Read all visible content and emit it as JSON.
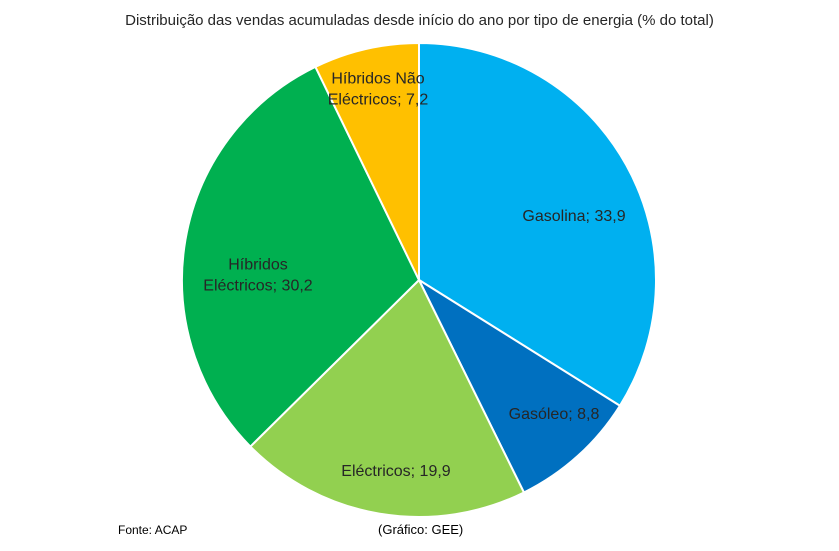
{
  "chart_data": {
    "type": "pie",
    "title": "Distribuição das vendas acumuladas desde início do ano por tipo de energia (% do total)",
    "start_angle_deg": 0,
    "direction": "clockwise",
    "legend": "none",
    "slices": [
      {
        "label_lines": [
          "Gasolina; 33,9"
        ],
        "name": "Gasolina",
        "value": 33.9,
        "color": "#00B0F0"
      },
      {
        "label_lines": [
          "Gasóleo; 8,8"
        ],
        "name": "Gasóleo",
        "value": 8.8,
        "color": "#0070C0"
      },
      {
        "label_lines": [
          "Eléctricos; 19,9"
        ],
        "name": "Eléctricos",
        "value": 19.9,
        "color": "#92D050"
      },
      {
        "label_lines": [
          "Híbridos",
          "Eléctricos; 30,2"
        ],
        "name": "Híbridos Eléctricos",
        "value": 30.2,
        "color": "#00B050"
      },
      {
        "label_lines": [
          "Híbridos Não",
          "Eléctricos; 7,2"
        ],
        "name": "Híbridos Não Eléctricos",
        "value": 7.2,
        "color": "#FFC000"
      }
    ]
  },
  "footer": {
    "source": "Fonte: ACAP",
    "credit": "(Gráfico: GEE)"
  }
}
